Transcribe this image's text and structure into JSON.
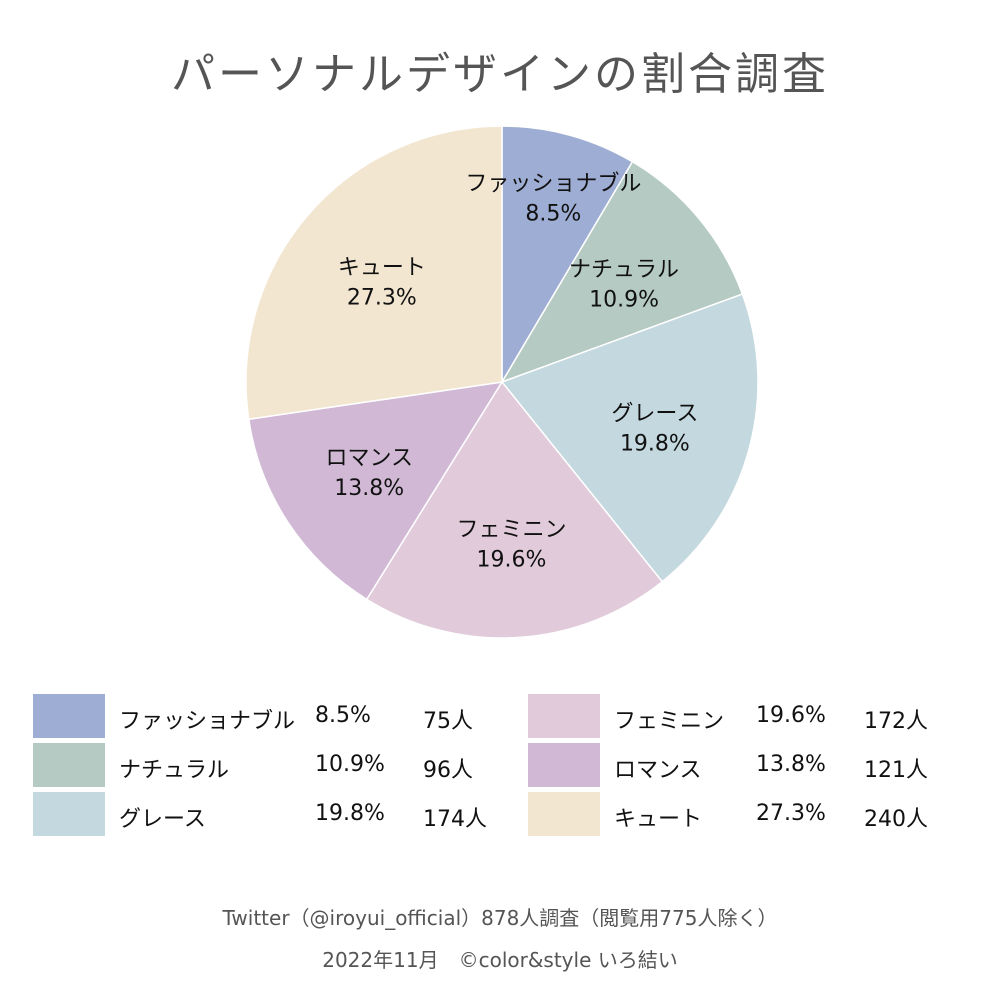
{
  "title": "パーソナルデザインの割合調査",
  "chart_data": {
    "type": "pie",
    "title": "パーソナルデザインの割合調査",
    "slices": [
      {
        "label": "ファッショナブル",
        "percent": 8.5,
        "percent_text": "8.5%",
        "count": 75,
        "count_text": "75人",
        "color": "#9eadd3"
      },
      {
        "label": "ナチュラル",
        "percent": 10.9,
        "percent_text": "10.9%",
        "count": 96,
        "count_text": "96人",
        "color": "#b5cac2"
      },
      {
        "label": "グレース",
        "percent": 19.8,
        "percent_text": "19.8%",
        "count": 174,
        "count_text": "174人",
        "color": "#c4d8df"
      },
      {
        "label": "フェミニン",
        "percent": 19.6,
        "percent_text": "19.6%",
        "count": 172,
        "count_text": "172人",
        "color": "#e1cad9"
      },
      {
        "label": "ロマンス",
        "percent": 13.8,
        "percent_text": "13.8%",
        "count": 121,
        "count_text": "121人",
        "color": "#d1b9d6"
      },
      {
        "label": "キュート",
        "percent": 27.3,
        "percent_text": "27.3%",
        "count": 240,
        "count_text": "240人",
        "color": "#f2e6d1"
      }
    ]
  },
  "footer": {
    "source": "Twitter（@iroyui_official）878人調査（閲覧用775人除く）",
    "credit": "2022年11月　©color&style いろ結い"
  }
}
